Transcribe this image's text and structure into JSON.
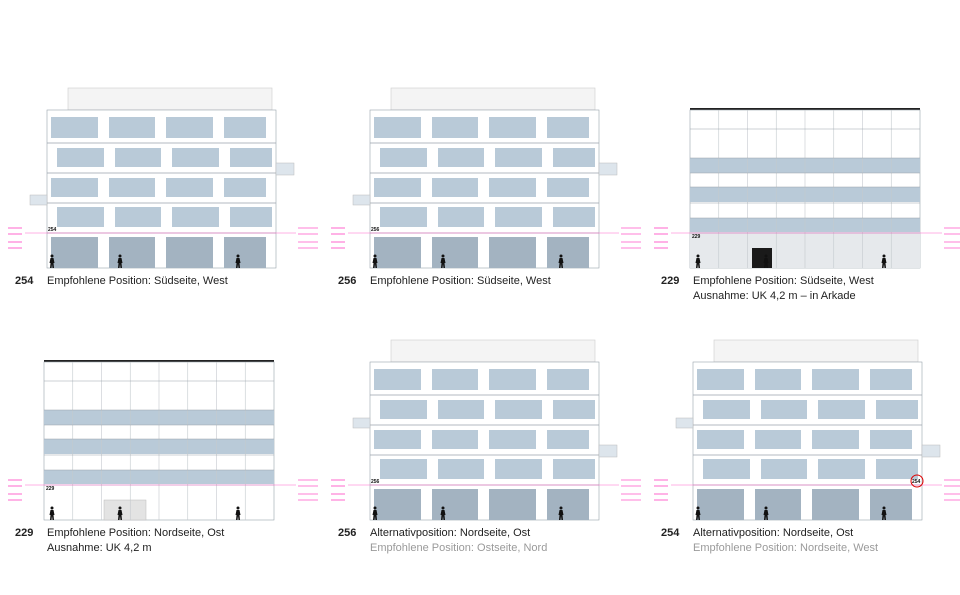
{
  "panels": [
    {
      "number": "254",
      "lines": [
        "Empfohlene Position: Südseite, West"
      ]
    },
    {
      "number": "256",
      "lines": [
        "Empfohlene Position: Südseite, West"
      ]
    },
    {
      "number": "229",
      "lines": [
        "Empfohlene Position: Südseite, West",
        "Ausnahme: UK 4,2 m – in Arkade"
      ]
    },
    {
      "number": "229",
      "lines": [
        "Empfohlene Position: Nordseite, Ost",
        "Ausnahme: UK 4,2 m"
      ]
    },
    {
      "number": "256",
      "lines": [
        "Alternativposition: Nordseite, Ost"
      ],
      "note": "Empfohlene Position: Ostseite, Nord"
    },
    {
      "number": "254",
      "lines": [
        "Alternativposition: Nordseite, Ost"
      ],
      "note": "Empfohlene Position: Nordseite, West"
    }
  ]
}
